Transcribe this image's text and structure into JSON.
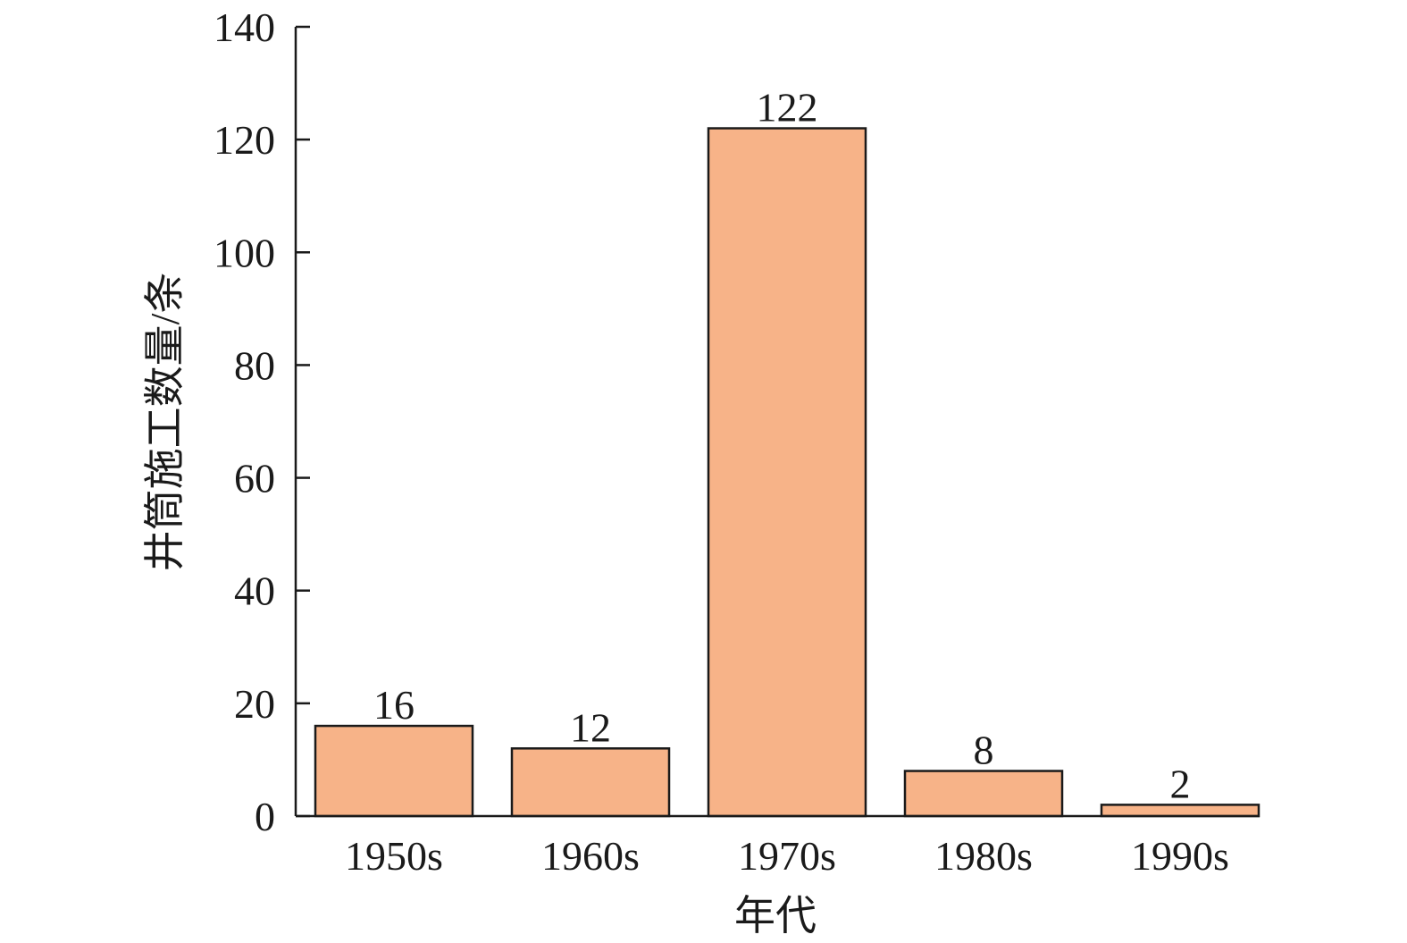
{
  "chart_data": {
    "type": "bar",
    "categories": [
      "1950s",
      "1960s",
      "1970s",
      "1980s",
      "1990s"
    ],
    "values": [
      16,
      12,
      122,
      8,
      2
    ],
    "data_labels": [
      "16",
      "12",
      "122",
      "8",
      "2"
    ],
    "xlabel": "年代",
    "ylabel": "井筒施工数量/条",
    "ylim": [
      0,
      140
    ],
    "yticks": [
      0,
      20,
      40,
      60,
      80,
      100,
      120,
      140
    ],
    "grid": false,
    "bar_color": "#F7B388"
  }
}
